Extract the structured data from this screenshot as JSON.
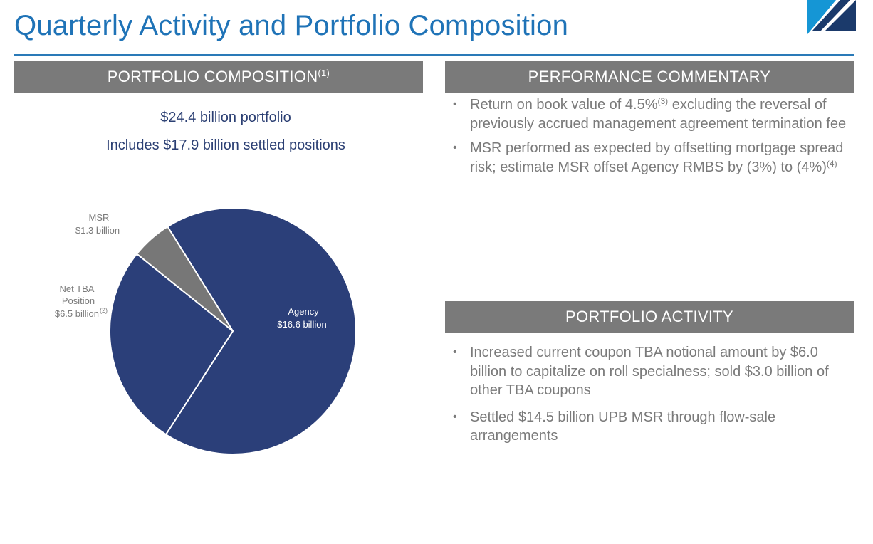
{
  "page": {
    "title": "Quarterly Activity and Portfolio Composition"
  },
  "portfolio": {
    "header": "PORTFOLIO COMPOSITION",
    "header_note": "(1)",
    "summary_line1": "$24.4 billion portfolio",
    "summary_line2": "Includes $17.9 billion settled positions"
  },
  "chart_data": {
    "type": "pie",
    "title": "",
    "unit": "billion USD",
    "slices": [
      {
        "name": "Agency",
        "label_line1": "Agency",
        "label_line2": "$16.6 billion",
        "note": "",
        "value": 16.6,
        "color": "#2b3f79"
      },
      {
        "name": "Net TBA Position",
        "label_line1": "Net TBA",
        "label_line2": "Position",
        "label_line3": "$6.5 billion",
        "note": "(2)",
        "value": 6.5,
        "color": "#2b3f79"
      },
      {
        "name": "MSR",
        "label_line1": "MSR",
        "label_line2": "$1.3 billion",
        "note": "",
        "value": 1.3,
        "color": "#777777"
      }
    ]
  },
  "performance": {
    "header": "PERFORMANCE COMMENTARY",
    "items": [
      {
        "text_before": "Return on book value of 4.5%",
        "note": "(3)",
        "text_after": " excluding the reversal of previously accrued management agreement termination fee"
      },
      {
        "text_before": "MSR performed as expected by offsetting mortgage spread risk; estimate MSR offset Agency RMBS by (3%) to (4%)",
        "note": "(4)",
        "text_after": ""
      }
    ]
  },
  "activity": {
    "header": "PORTFOLIO ACTIVITY",
    "items": [
      {
        "text": "Increased current coupon TBA notional amount by $6.0 billion to capitalize on roll specialness; sold $3.0 billion of other TBA coupons"
      },
      {
        "text": "Settled $14.5 billion UPB MSR through flow-sale arrangements"
      }
    ]
  },
  "logo": {
    "colors": {
      "light": "#1596d5",
      "dark": "#1b3a6b"
    }
  }
}
